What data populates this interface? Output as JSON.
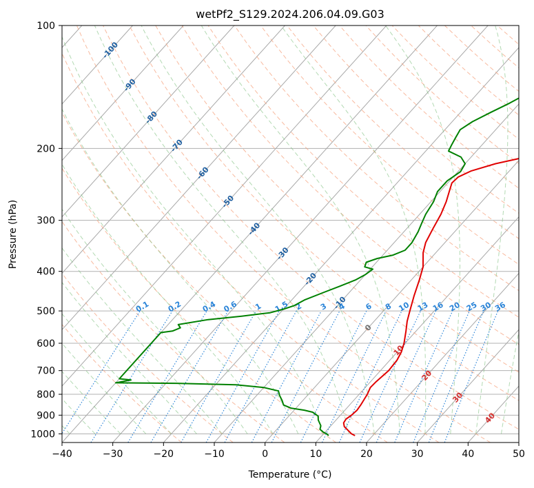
{
  "chart_data": {
    "type": "line",
    "title": "wetPf2_S129.2024.206.04.09.G03",
    "xlabel": "Temperature (°C)",
    "ylabel": "Pressure (hPa)",
    "xlim": [
      -40,
      50
    ],
    "ylim": [
      1050,
      100
    ],
    "y_scale": "log",
    "grid": true,
    "x_ticks": [
      "−40",
      "−30",
      "−20",
      "−10",
      "0",
      "10",
      "20",
      "30",
      "40",
      "50"
    ],
    "y_ticks": [
      {
        "p": 100,
        "label": "100"
      },
      {
        "p": 200,
        "label": "200"
      },
      {
        "p": 300,
        "label": "300"
      },
      {
        "p": 400,
        "label": "400"
      },
      {
        "p": 500,
        "label": "500"
      },
      {
        "p": 600,
        "label": "600"
      },
      {
        "p": 700,
        "label": "700"
      },
      {
        "p": 800,
        "label": "800"
      },
      {
        "p": 900,
        "label": "900"
      },
      {
        "p": 1000,
        "label": "1000"
      }
    ],
    "isotherm_labels": [
      {
        "t": -100,
        "p": 115,
        "label": "-100"
      },
      {
        "t": -90,
        "p": 140,
        "label": "-90"
      },
      {
        "t": -80,
        "p": 168,
        "label": "-80"
      },
      {
        "t": -70,
        "p": 197,
        "label": "-70"
      },
      {
        "t": -60,
        "p": 230,
        "label": "-60"
      },
      {
        "t": -50,
        "p": 270,
        "label": "-50"
      },
      {
        "t": -40,
        "p": 315,
        "label": "-40"
      },
      {
        "t": -30,
        "p": 362,
        "label": "-30"
      },
      {
        "t": -20,
        "p": 418,
        "label": "-20"
      },
      {
        "t": -10,
        "p": 478,
        "label": "-10"
      },
      {
        "t": 0,
        "p": 550,
        "label": "0"
      },
      {
        "t": 10,
        "p": 625,
        "label": "10"
      },
      {
        "t": 20,
        "p": 720,
        "label": "20"
      },
      {
        "t": 30,
        "p": 815,
        "label": "30"
      },
      {
        "t": 40,
        "p": 915,
        "label": "40"
      }
    ],
    "mixing_ratio_labels": [
      "0.1",
      "0.2",
      "0.4",
      "0.6",
      "1",
      "1.5",
      "2",
      "3",
      "4",
      "6",
      "8",
      "10",
      "13",
      "16",
      "20",
      "25",
      "30",
      "36"
    ],
    "series": [
      {
        "color": "#e00000",
        "points": [
          [
            16.5,
            1010
          ],
          [
            15.5,
            1000
          ],
          [
            14.5,
            985
          ],
          [
            12.8,
            960
          ],
          [
            12.0,
            940
          ],
          [
            11.8,
            920
          ],
          [
            12.2,
            900
          ],
          [
            12.4,
            875
          ],
          [
            12.2,
            850
          ],
          [
            11.6,
            800
          ],
          [
            11.0,
            770
          ],
          [
            11.1,
            745
          ],
          [
            11.6,
            700
          ],
          [
            11.4,
            660
          ],
          [
            10.8,
            630
          ],
          [
            9.8,
            600
          ],
          [
            8.0,
            560
          ],
          [
            6.5,
            530
          ],
          [
            5.2,
            500
          ],
          [
            3.4,
            460
          ],
          [
            1.6,
            420
          ],
          [
            0.0,
            390
          ],
          [
            -2.5,
            360
          ],
          [
            -3.8,
            340
          ],
          [
            -4.8,
            315
          ],
          [
            -5.8,
            290
          ],
          [
            -7.0,
            270
          ],
          [
            -8.2,
            255
          ],
          [
            -9.2,
            243
          ],
          [
            -9.0,
            235
          ],
          [
            -7.5,
            227
          ],
          [
            -4.0,
            218
          ],
          [
            2.0,
            208
          ],
          [
            7.0,
            200
          ],
          [
            12.0,
            191
          ],
          [
            15.5,
            183
          ],
          [
            17.5,
            176
          ],
          [
            18.5,
            168
          ],
          [
            19.5,
            160
          ],
          [
            21.0,
            152
          ],
          [
            23.5,
            143
          ],
          [
            26.0,
            133
          ],
          [
            28.0,
            123
          ],
          [
            30.0,
            112
          ],
          [
            31.5,
            105
          ],
          [
            32.0,
            100
          ]
        ]
      },
      {
        "color": "#008000",
        "points": [
          [
            11.3,
            1010
          ],
          [
            10.6,
            1000
          ],
          [
            9.6,
            990
          ],
          [
            8.5,
            975
          ],
          [
            8.0,
            955
          ],
          [
            6.5,
            925
          ],
          [
            5.8,
            905
          ],
          [
            4.0,
            885
          ],
          [
            2.0,
            875
          ],
          [
            -1.0,
            865
          ],
          [
            -3.0,
            850
          ],
          [
            -4.0,
            830
          ],
          [
            -5.5,
            805
          ],
          [
            -6.5,
            785
          ],
          [
            -10.0,
            770
          ],
          [
            -16.0,
            758
          ],
          [
            -28.0,
            752
          ],
          [
            -40.0,
            750
          ],
          [
            -37.5,
            738
          ],
          [
            -40.0,
            733
          ],
          [
            -40.0,
            565
          ],
          [
            -38.0,
            560
          ],
          [
            -37.0,
            550
          ],
          [
            -38.0,
            540
          ],
          [
            -33.0,
            525
          ],
          [
            -27.0,
            515
          ],
          [
            -22.0,
            505
          ],
          [
            -20.0,
            495
          ],
          [
            -18.5,
            485
          ],
          [
            -17.5,
            470
          ],
          [
            -15.0,
            450
          ],
          [
            -13.0,
            435
          ],
          [
            -11.0,
            420
          ],
          [
            -10.0,
            407
          ],
          [
            -9.5,
            395
          ],
          [
            -11.5,
            390
          ],
          [
            -12.0,
            380
          ],
          [
            -10.5,
            372
          ],
          [
            -8.0,
            365
          ],
          [
            -6.5,
            355
          ],
          [
            -6.5,
            340
          ],
          [
            -7.2,
            320
          ],
          [
            -8.0,
            305
          ],
          [
            -8.8,
            290
          ],
          [
            -9.5,
            270
          ],
          [
            -10.5,
            255
          ],
          [
            -10.5,
            240
          ],
          [
            -9.5,
            228
          ],
          [
            -10.0,
            218
          ],
          [
            -12.0,
            210
          ],
          [
            -15.5,
            203
          ],
          [
            -16.0,
            196
          ],
          [
            -16.5,
            188
          ],
          [
            -17.0,
            180
          ],
          [
            -16.0,
            172
          ],
          [
            -14.0,
            163
          ],
          [
            -12.0,
            155
          ],
          [
            -10.0,
            146
          ],
          [
            -8.5,
            138
          ],
          [
            -6.0,
            130
          ],
          [
            -5.0,
            125
          ],
          [
            -4.5,
            118
          ],
          [
            -4.0,
            112
          ],
          [
            -1.5,
            106
          ],
          [
            1.5,
            100
          ]
        ]
      }
    ]
  }
}
